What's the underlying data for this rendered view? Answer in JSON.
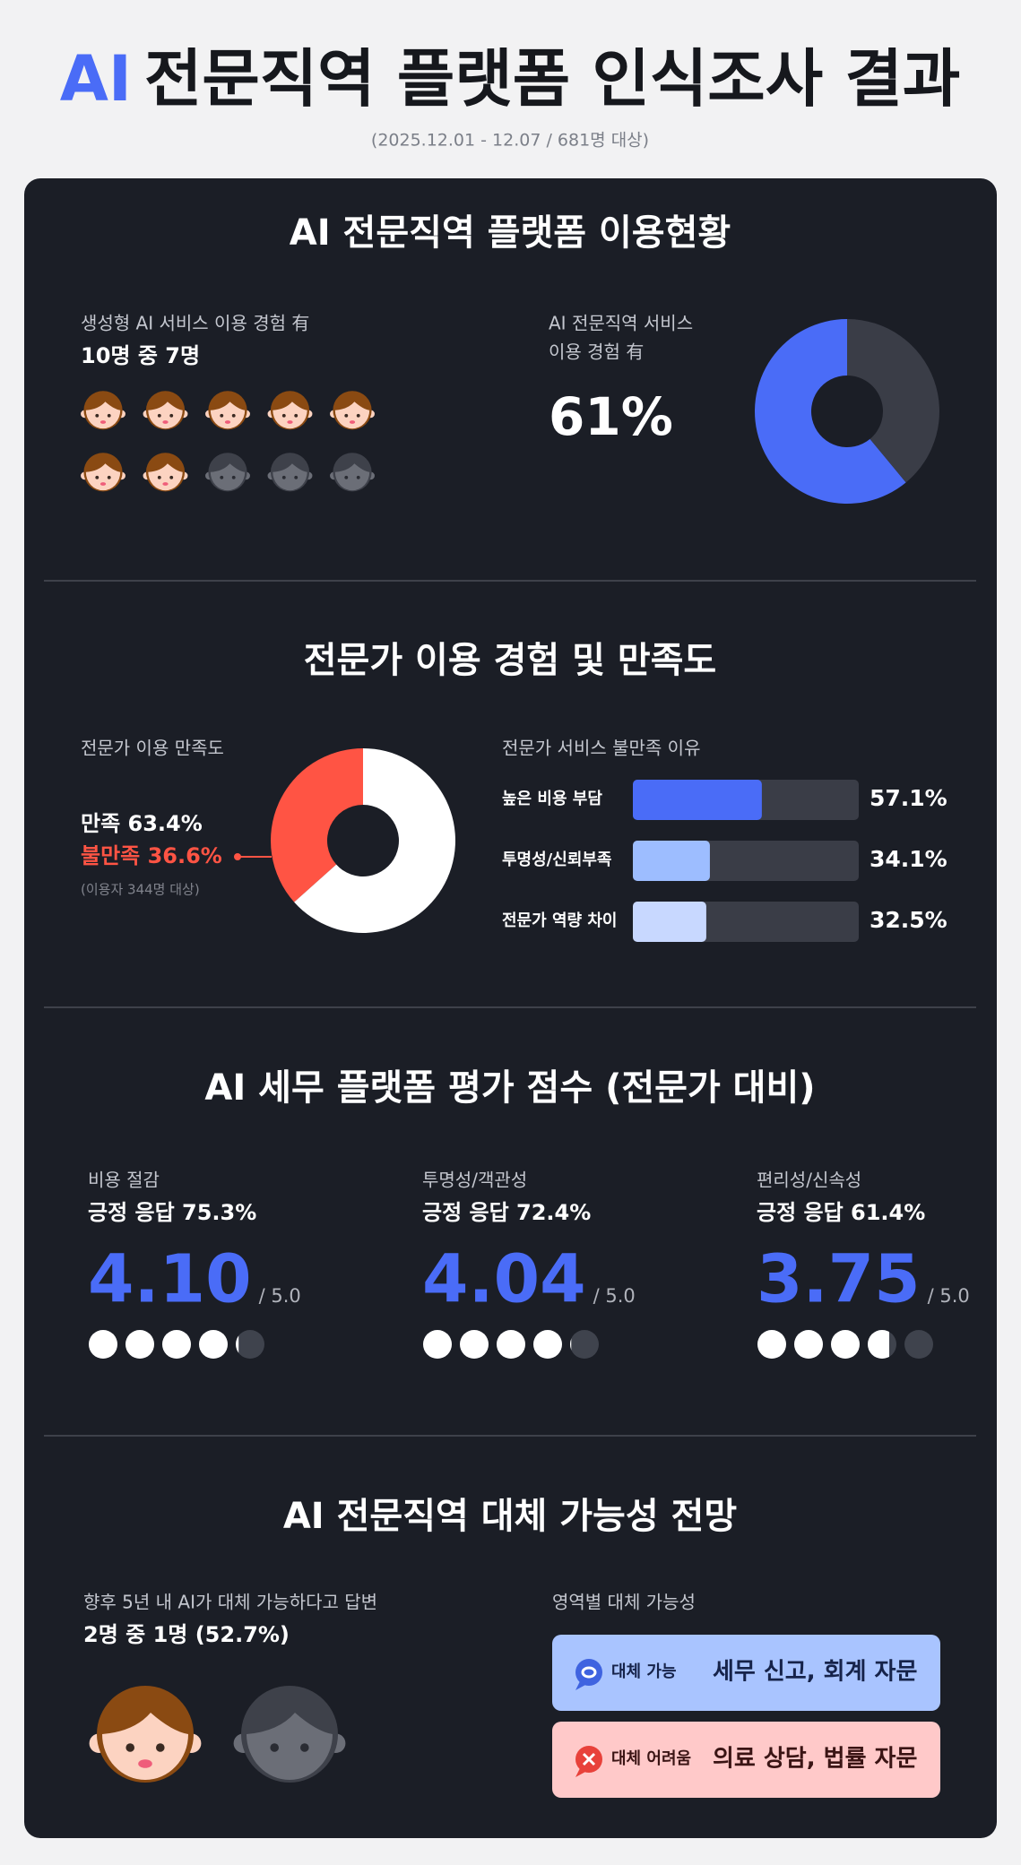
{
  "header": {
    "title_accent": "AI",
    "title": "전문직역 플랫폼 인식조사 결과",
    "subtitle": "(2025.12.01 - 12.07 / 681명 대상)"
  },
  "sections": [
    {
      "title": "AI 전문직역 플랫폼 이용현황",
      "left": {
        "label": "생성형 AI 서비스 이용 경험 有",
        "headline": "10명 중 7명",
        "icons": {
          "total": 10,
          "highlighted": 7
        }
      },
      "right": {
        "label_lines": [
          "AI 전문직역 서비스",
          "이용 경험 有"
        ],
        "value": 61,
        "value_label": "61%",
        "max": 100,
        "color": "#4a6cf7",
        "rest_color": "#3a3d47"
      }
    },
    {
      "title": "전문가 이용 경험 및 만족도",
      "left": {
        "label": "전문가 이용 만족도",
        "note": "(이용자 344명 대상)",
        "segments": [
          {
            "label": "불만족 36.6%",
            "value": 36.6,
            "color": "#ff5444"
          },
          {
            "label": "만족 63.4%",
            "value": 63.4,
            "color": "#ffffff"
          }
        ]
      },
      "right": {
        "title": "전문가 서비스 불만족 이유",
        "xlim": [
          0,
          100
        ],
        "track_color": "#3a3d47",
        "items": [
          {
            "label": "높은 비용 부담",
            "value": 57.1,
            "value_label": "57.1%",
            "color": "#4a6cf7"
          },
          {
            "label": "투명성/신뢰부족",
            "value": 34.1,
            "value_label": "34.1%",
            "color": "#9dbdff"
          },
          {
            "label": "전문가 역량 차이",
            "value": 32.5,
            "value_label": "32.5%",
            "color": "#c8d8ff"
          }
        ]
      }
    },
    {
      "title": "AI 세무 플랫폼 평가 점수 (전문가 대비)",
      "max": 5,
      "max_label": "/ 5.0",
      "items": [
        {
          "label": "비용 절감",
          "positive": "긍정 응답 75.3%",
          "score": 4.1,
          "score_label": "4.10"
        },
        {
          "label": "투명성/객관성",
          "positive": "긍정 응답 72.4%",
          "score": 4.04,
          "score_label": "4.04"
        },
        {
          "label": "편리성/신속성",
          "positive": "긍정 응답 61.4%",
          "score": 3.75,
          "score_label": "3.75"
        }
      ]
    },
    {
      "title": "AI 전문직역 대체 가능성 전망",
      "left": {
        "label": "향후 5년 내 AI가 대체 가능하다고 답변",
        "headline": "2명 중 1명 (52.7%)",
        "icons": {
          "total": 2,
          "highlighted": 1
        }
      },
      "right": {
        "title": "영역별 대체 가능성",
        "boxes": [
          {
            "tag": "대체 가능",
            "text": "세무 신고, 회계 자문"
          },
          {
            "tag": "대체 어려움",
            "text": "의료 상담, 법률 자문"
          }
        ]
      }
    }
  ]
}
